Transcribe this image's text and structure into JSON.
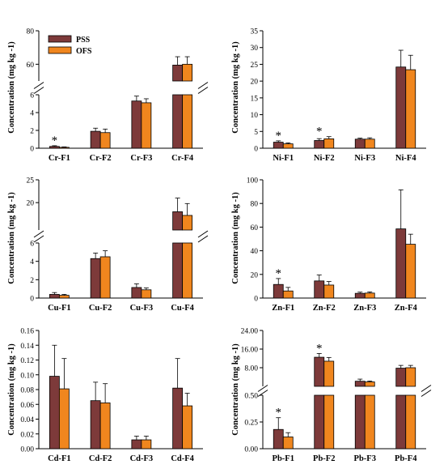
{
  "colors": {
    "PSS": "#7d3a3a",
    "OFS": "#f0861e"
  },
  "chart_data": [
    {
      "type": "bar",
      "ylabel": "Concentration (mg kg -1)",
      "categories": [
        "Cr-F1",
        "Cr-F2",
        "Cr-F3",
        "Cr-F4"
      ],
      "legend": [
        "PSS",
        "OFS"
      ],
      "legend_position": "top-left",
      "series": [
        {
          "name": "PSS",
          "values": [
            0.2,
            1.9,
            5.3,
            59.5
          ],
          "errors": [
            0.08,
            0.35,
            0.55,
            5.0
          ]
        },
        {
          "name": "OFS",
          "values": [
            0.1,
            1.75,
            5.1,
            60.0
          ],
          "errors": [
            0.05,
            0.4,
            0.45,
            4.5
          ]
        }
      ],
      "significant": [
        true,
        false,
        false,
        false
      ],
      "broken_axis": true,
      "lower_ylim": [
        0,
        6
      ],
      "upper_ylim": [
        50,
        80
      ],
      "lower_ticks": [
        "0",
        "2",
        "4",
        "6"
      ],
      "upper_ticks": [
        "60",
        "80"
      ]
    },
    {
      "type": "bar",
      "ylabel": "Concentration (mg kg -1)",
      "categories": [
        "Ni-F1",
        "Ni-F2",
        "Ni-F3",
        "Ni-F4"
      ],
      "series": [
        {
          "name": "PSS",
          "values": [
            1.8,
            2.3,
            2.7,
            24.2
          ],
          "errors": [
            0.4,
            0.55,
            0.3,
            5.0
          ]
        },
        {
          "name": "OFS",
          "values": [
            1.3,
            2.8,
            2.7,
            23.4
          ],
          "errors": [
            0.3,
            0.65,
            0.4,
            4.3
          ]
        }
      ],
      "significant": [
        true,
        true,
        false,
        false
      ],
      "broken_axis": false,
      "ylim": [
        0,
        35
      ],
      "ticks": [
        "0",
        "5",
        "10",
        "15",
        "20",
        "25",
        "30",
        "35"
      ]
    },
    {
      "type": "bar",
      "ylabel": "Concentration (mg kg -1)",
      "categories": [
        "Cu-F1",
        "Cu-F2",
        "Cu-F3",
        "Cu-F4"
      ],
      "series": [
        {
          "name": "PSS",
          "values": [
            0.4,
            4.3,
            1.15,
            18.0
          ],
          "errors": [
            0.2,
            0.6,
            0.4,
            3.0
          ]
        },
        {
          "name": "OFS",
          "values": [
            0.3,
            4.5,
            0.9,
            17.2
          ],
          "errors": [
            0.1,
            0.65,
            0.2,
            2.6
          ]
        }
      ],
      "significant": [
        false,
        false,
        false,
        false
      ],
      "broken_axis": true,
      "lower_ylim": [
        0,
        6
      ],
      "upper_ylim": [
        14,
        25
      ],
      "lower_ticks": [
        "0",
        "2",
        "4",
        "6"
      ],
      "upper_ticks": [
        "20",
        "25"
      ]
    },
    {
      "type": "bar",
      "ylabel": "Concentration (mg kg -1)",
      "categories": [
        "Zn-F1",
        "Zn-F2",
        "Zn-F3",
        "Zn-F4"
      ],
      "series": [
        {
          "name": "PSS",
          "values": [
            11.5,
            14.5,
            4.0,
            58.5
          ],
          "errors": [
            5.0,
            5.0,
            1.0,
            33.0
          ]
        },
        {
          "name": "OFS",
          "values": [
            6.0,
            11.0,
            4.2,
            45.5
          ],
          "errors": [
            3.0,
            3.0,
            1.0,
            8.5
          ]
        }
      ],
      "significant": [
        true,
        false,
        false,
        false
      ],
      "broken_axis": false,
      "ylim": [
        0,
        100
      ],
      "ticks": [
        "0",
        "20",
        "40",
        "60",
        "80",
        "100"
      ]
    },
    {
      "type": "bar",
      "ylabel": "Concentration (mg kg -1)",
      "categories": [
        "Cd-F1",
        "Cd-F2",
        "Cd-F3",
        "Cd-F4"
      ],
      "series": [
        {
          "name": "PSS",
          "values": [
            0.098,
            0.065,
            0.012,
            0.082
          ],
          "errors": [
            0.042,
            0.025,
            0.005,
            0.04
          ]
        },
        {
          "name": "OFS",
          "values": [
            0.081,
            0.062,
            0.012,
            0.058
          ],
          "errors": [
            0.041,
            0.026,
            0.005,
            0.017
          ]
        }
      ],
      "significant": [
        false,
        false,
        false,
        false
      ],
      "broken_axis": false,
      "ylim": [
        0,
        0.16
      ],
      "ticks": [
        "0.00",
        "0.02",
        "0.04",
        "0.06",
        "0.08",
        "0.10",
        "0.12",
        "0.14",
        "0.16"
      ]
    },
    {
      "type": "bar",
      "ylabel": "Concentration (mg kg -1)",
      "categories": [
        "Pb-F1",
        "Pb-F2",
        "Pb-F3",
        "Pb-F4"
      ],
      "series": [
        {
          "name": "PSS",
          "values": [
            0.18,
            12.5,
            2.2,
            7.8
          ],
          "errors": [
            0.11,
            1.6,
            0.9,
            1.2
          ]
        },
        {
          "name": "OFS",
          "values": [
            0.11,
            10.8,
            1.9,
            8.0
          ],
          "errors": [
            0.04,
            1.6,
            0.4,
            1.0
          ]
        }
      ],
      "significant": [
        true,
        true,
        false,
        false
      ],
      "broken_axis": true,
      "lower_ylim": [
        0,
        0.5
      ],
      "upper_ylim": [
        0,
        24
      ],
      "lower_ticks": [
        "0.00",
        "0.25",
        "0.50"
      ],
      "upper_ticks": [
        "8.00",
        "16.00",
        "24.00"
      ]
    }
  ]
}
